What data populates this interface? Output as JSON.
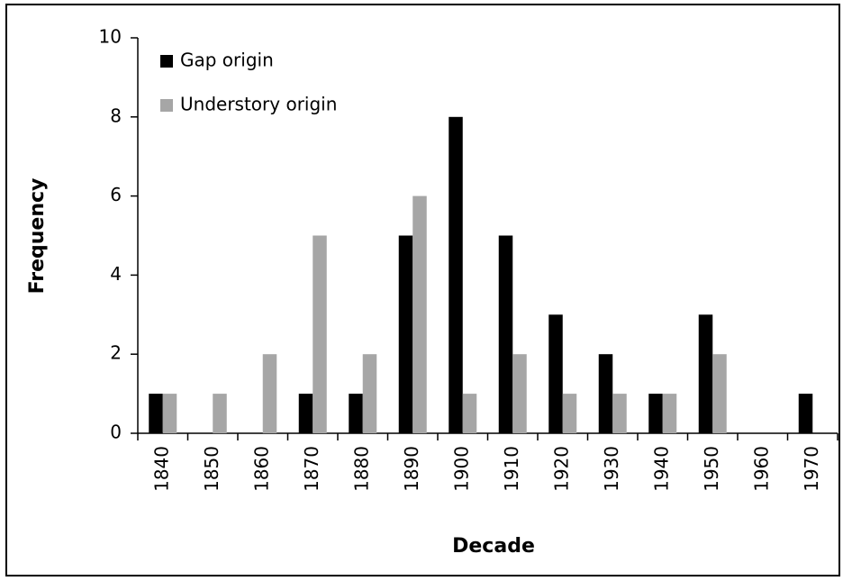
{
  "chart_data": {
    "type": "bar",
    "x_label": "Decade",
    "y_label": "Frequency",
    "categories": [
      "1840",
      "1850",
      "1860",
      "1870",
      "1880",
      "1890",
      "1900",
      "1910",
      "1920",
      "1930",
      "1940",
      "1950",
      "1960",
      "1970"
    ],
    "series": [
      {
        "name": "Gap origin",
        "color": "#000000",
        "values": [
          1,
          0,
          0,
          1,
          1,
          5,
          8,
          5,
          3,
          2,
          1,
          3,
          0,
          1
        ]
      },
      {
        "name": "Understory origin",
        "color": "#a6a6a6",
        "values": [
          1,
          1,
          2,
          5,
          2,
          6,
          1,
          2,
          1,
          1,
          1,
          2,
          0,
          0
        ]
      }
    ],
    "ylim": [
      0,
      10
    ],
    "yticks": [
      0,
      2,
      4,
      6,
      8,
      10
    ],
    "grid": false,
    "legend": "upper left"
  }
}
